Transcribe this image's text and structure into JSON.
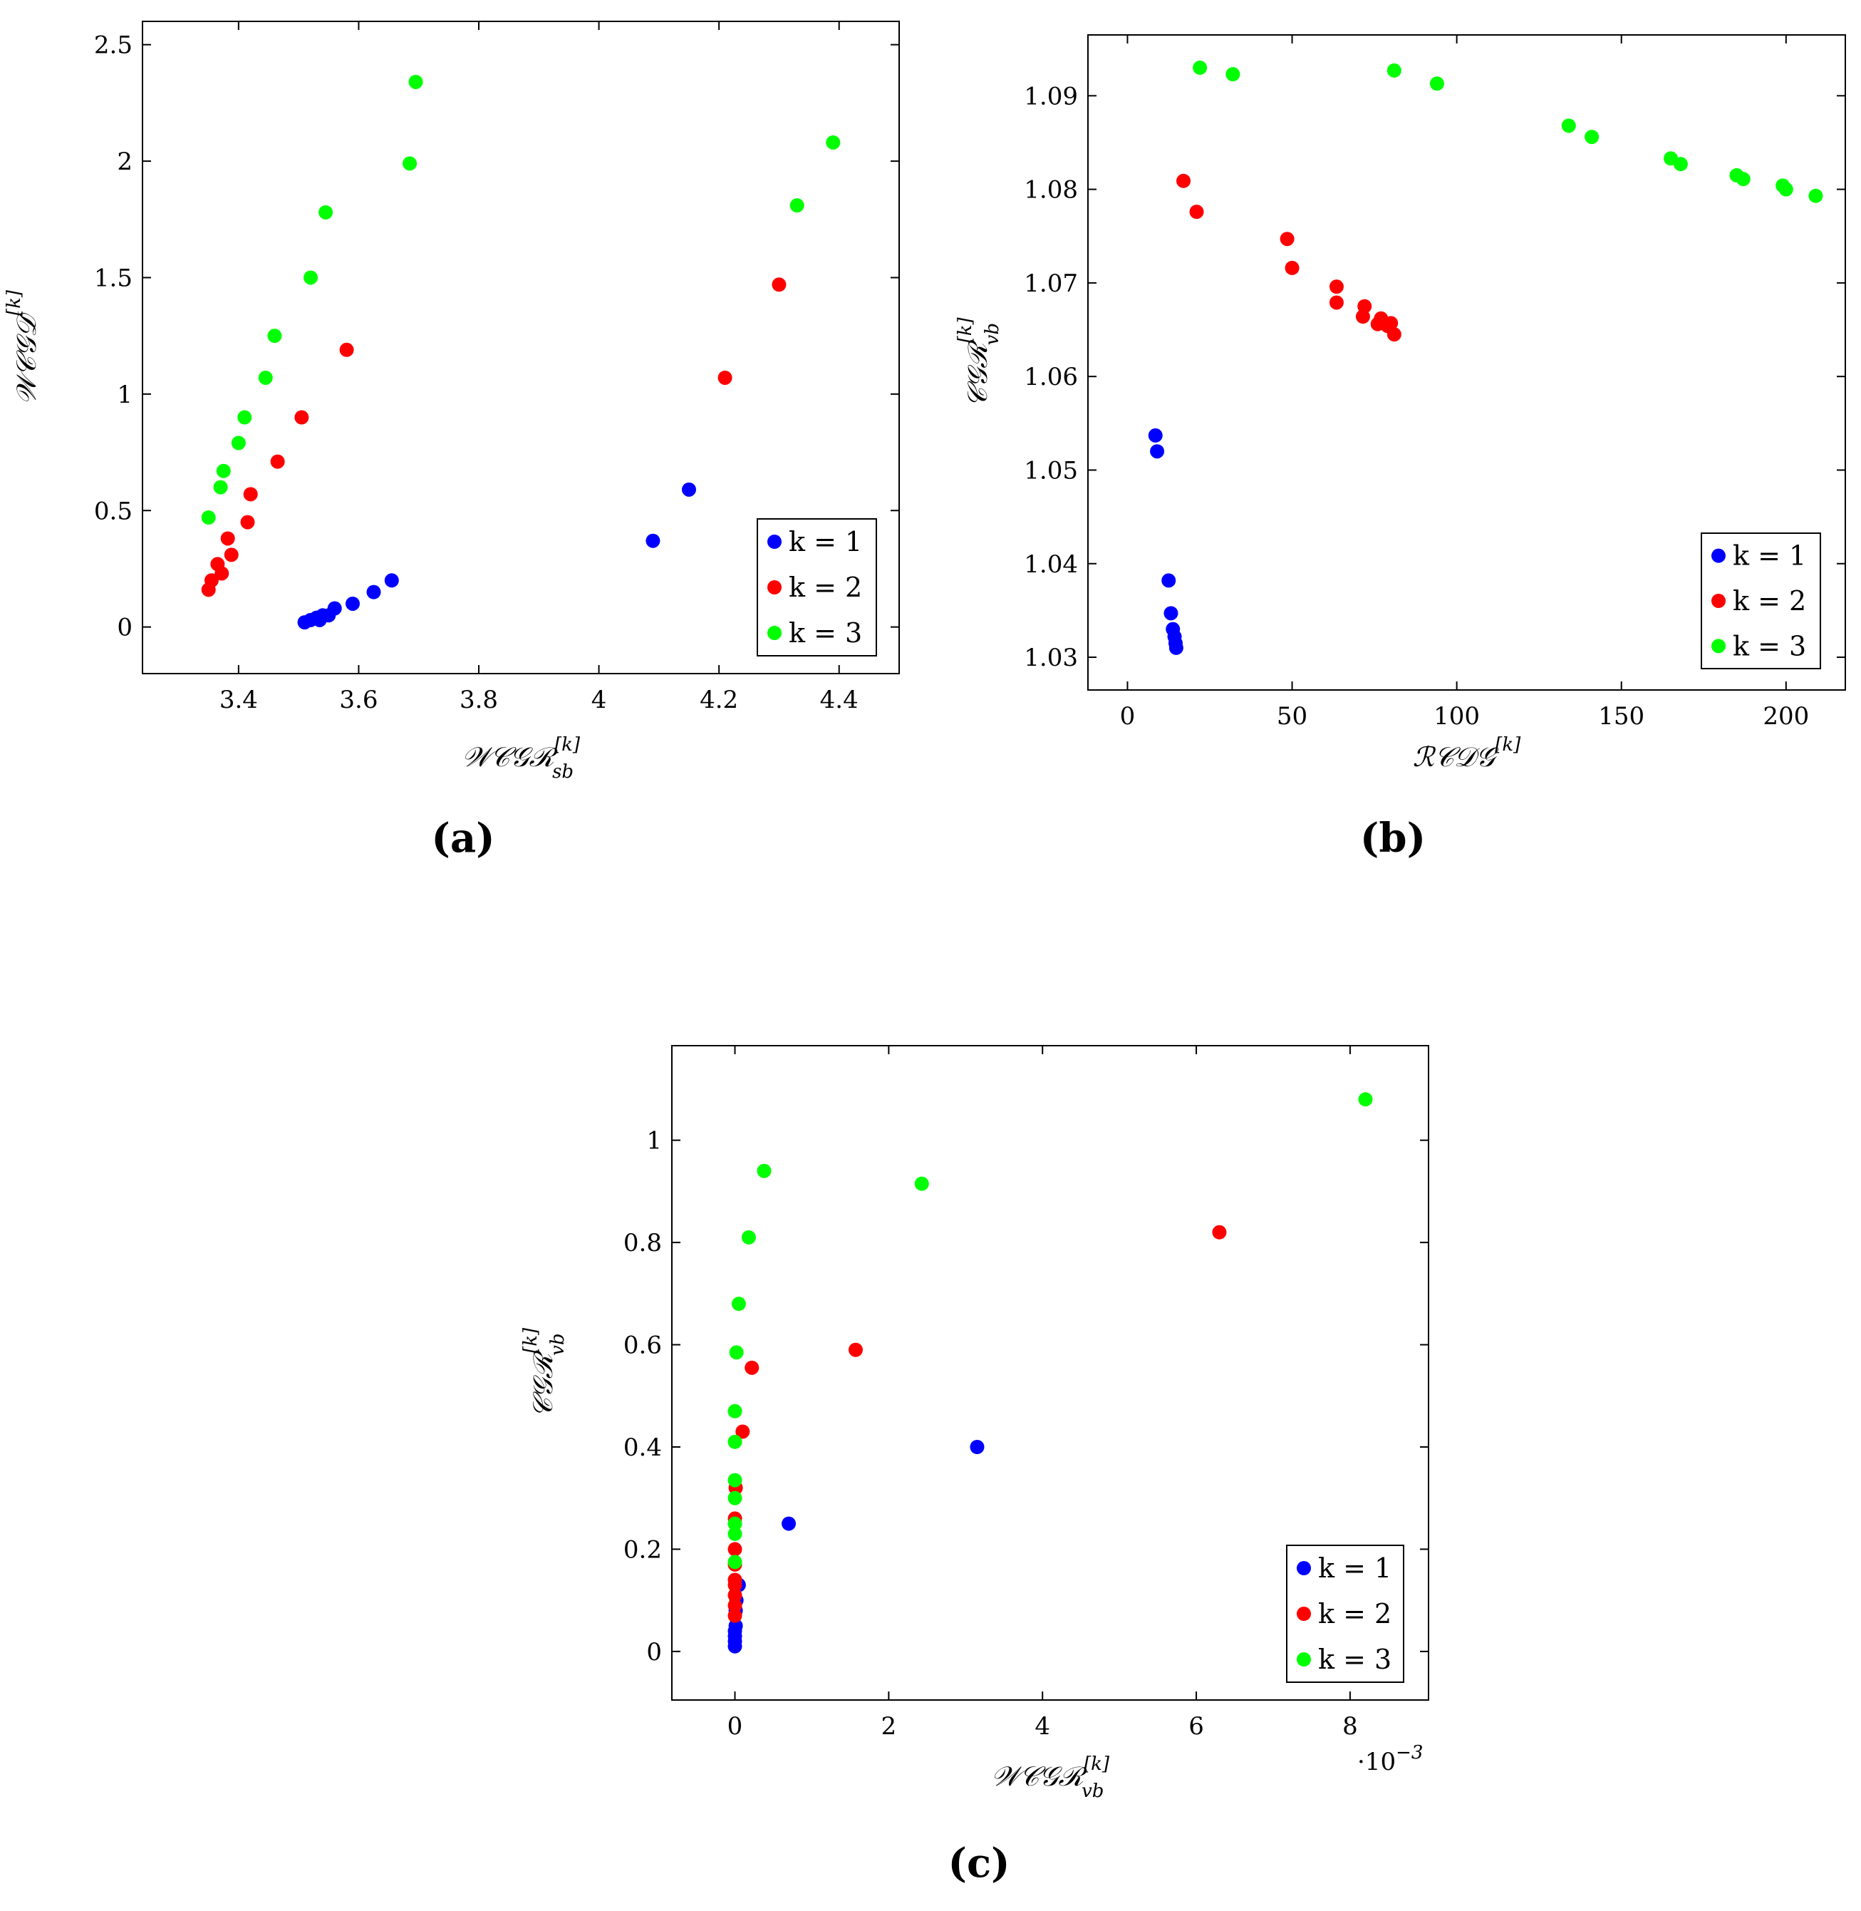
{
  "colors": {
    "k1": "#0000ff",
    "k2": "#ff0000",
    "k3": "#00ff00"
  },
  "legend": [
    {
      "key": "k1",
      "label": "k = 1"
    },
    {
      "key": "k2",
      "label": "k = 2"
    },
    {
      "key": "k3",
      "label": "k = 3"
    }
  ],
  "chart_data": [
    {
      "id": "a",
      "type": "scatter",
      "caption": "(a)",
      "xlabel": {
        "main": "𝒲𝒞𝒢ℛ",
        "sub": "sb",
        "sup": "[k]"
      },
      "ylabel": {
        "main": "𝒲𝒞𝒢𝒟",
        "sup": "[k]"
      },
      "xlim": [
        3.24,
        4.5
      ],
      "ylim": [
        -0.2,
        2.6
      ],
      "xticks": [
        3.4,
        3.6,
        3.8,
        4.0,
        4.2,
        4.4
      ],
      "xticklabels": [
        "3.4",
        "3.6",
        "3.8",
        "4",
        "4.2",
        "4.4"
      ],
      "yticks": [
        0,
        0.5,
        1,
        1.5,
        2,
        2.5
      ],
      "yticklabels": [
        "0",
        "0.5",
        "1",
        "1.5",
        "2",
        "2.5"
      ],
      "series": [
        {
          "name": "k = 1",
          "color_key": "k1",
          "points": [
            [
              3.51,
              0.02
            ],
            [
              3.52,
              0.03
            ],
            [
              3.53,
              0.04
            ],
            [
              3.535,
              0.03
            ],
            [
              3.54,
              0.05
            ],
            [
              3.55,
              0.05
            ],
            [
              3.56,
              0.08
            ],
            [
              3.59,
              0.1
            ],
            [
              3.625,
              0.15
            ],
            [
              3.655,
              0.2
            ],
            [
              4.09,
              0.37
            ],
            [
              4.15,
              0.59
            ]
          ]
        },
        {
          "name": "k = 2",
          "color_key": "k2",
          "points": [
            [
              3.35,
              0.16
            ],
            [
              3.355,
              0.2
            ],
            [
              3.365,
              0.27
            ],
            [
              3.372,
              0.23
            ],
            [
              3.382,
              0.38
            ],
            [
              3.388,
              0.31
            ],
            [
              3.415,
              0.45
            ],
            [
              3.42,
              0.57
            ],
            [
              3.465,
              0.71
            ],
            [
              3.505,
              0.9
            ],
            [
              3.58,
              1.19
            ],
            [
              4.21,
              1.07
            ],
            [
              4.3,
              1.47
            ]
          ]
        },
        {
          "name": "k = 3",
          "color_key": "k3",
          "points": [
            [
              3.35,
              0.47
            ],
            [
              3.37,
              0.6
            ],
            [
              3.375,
              0.67
            ],
            [
              3.4,
              0.79
            ],
            [
              3.41,
              0.9
            ],
            [
              3.445,
              1.07
            ],
            [
              3.46,
              1.25
            ],
            [
              3.52,
              1.5
            ],
            [
              3.545,
              1.78
            ],
            [
              3.685,
              1.99
            ],
            [
              3.695,
              2.34
            ],
            [
              4.33,
              1.81
            ],
            [
              4.39,
              2.08
            ]
          ]
        }
      ]
    },
    {
      "id": "b",
      "type": "scatter",
      "caption": "(b)",
      "xlabel": {
        "main": "ℛ𝒞𝒟𝒢",
        "sup": "[k]"
      },
      "ylabel": {
        "main": "𝒞𝒢ℛ",
        "sub": "vb",
        "sup": "[k]"
      },
      "xlim": [
        -12,
        218
      ],
      "ylim": [
        1.0265,
        1.0965
      ],
      "xticks": [
        0,
        50,
        100,
        150,
        200
      ],
      "xticklabels": [
        "0",
        "50",
        "100",
        "150",
        "200"
      ],
      "yticks": [
        1.03,
        1.04,
        1.05,
        1.06,
        1.07,
        1.08,
        1.09
      ],
      "yticklabels": [
        "1.03",
        "1.04",
        "1.05",
        "1.06",
        "1.07",
        "1.08",
        "1.09"
      ],
      "series": [
        {
          "name": "k = 1",
          "color_key": "k1",
          "points": [
            [
              8.5,
              1.0537
            ],
            [
              9.0,
              1.052
            ],
            [
              12.5,
              1.0382
            ],
            [
              13.2,
              1.0347
            ],
            [
              13.8,
              1.033
            ],
            [
              14.3,
              1.0322
            ],
            [
              14.6,
              1.0315
            ],
            [
              14.8,
              1.031
            ]
          ]
        },
        {
          "name": "k = 2",
          "color_key": "k2",
          "points": [
            [
              17,
              1.0809
            ],
            [
              21,
              1.0776
            ],
            [
              48.5,
              1.0747
            ],
            [
              50,
              1.0716
            ],
            [
              63.5,
              1.0696
            ],
            [
              63.5,
              1.0679
            ],
            [
              71.5,
              1.0664
            ],
            [
              72,
              1.0675
            ],
            [
              76,
              1.0656
            ],
            [
              77,
              1.0662
            ],
            [
              79,
              1.0654
            ],
            [
              80,
              1.0657
            ],
            [
              81,
              1.0645
            ]
          ]
        },
        {
          "name": "k = 3",
          "color_key": "k3",
          "points": [
            [
              22,
              1.093
            ],
            [
              32,
              1.0923
            ],
            [
              81,
              1.0927
            ],
            [
              94,
              1.0913
            ],
            [
              134,
              1.0868
            ],
            [
              141,
              1.0856
            ],
            [
              165,
              1.0833
            ],
            [
              168,
              1.0827
            ],
            [
              185,
              1.0815
            ],
            [
              187,
              1.0811
            ],
            [
              199,
              1.0804
            ],
            [
              200,
              1.08
            ],
            [
              209,
              1.0793
            ]
          ]
        }
      ]
    },
    {
      "id": "c",
      "type": "scatter",
      "caption": "(c)",
      "xlabel": {
        "main": "𝒲𝒞𝒢ℛ",
        "sub": "vb",
        "sup": "[k]"
      },
      "ylabel": {
        "main": "𝒞𝒢ℛ",
        "sub": "vb",
        "sup": "[k]"
      },
      "xscale_label": "·10",
      "xscale_exp": "−3",
      "xlim": [
        -0.00082,
        0.00902
      ],
      "ylim": [
        -0.095,
        1.185
      ],
      "xticks": [
        0,
        0.002,
        0.004,
        0.006,
        0.008
      ],
      "xticklabels": [
        "0",
        "2",
        "4",
        "6",
        "8"
      ],
      "yticks": [
        0,
        0.2,
        0.4,
        0.6,
        0.8,
        1
      ],
      "yticklabels": [
        "0",
        "0.2",
        "0.4",
        "0.6",
        "0.8",
        "1"
      ],
      "series": [
        {
          "name": "k = 1",
          "color_key": "k1",
          "points": [
            [
              0,
              0.01
            ],
            [
              0,
              0.02
            ],
            [
              0,
              0.03
            ],
            [
              0,
              0.04
            ],
            [
              1e-05,
              0.05
            ],
            [
              1e-05,
              0.08
            ],
            [
              2e-05,
              0.1
            ],
            [
              5e-05,
              0.13
            ],
            [
              0.0007,
              0.25
            ],
            [
              0.00315,
              0.4
            ]
          ]
        },
        {
          "name": "k = 2",
          "color_key": "k2",
          "points": [
            [
              0,
              0.07
            ],
            [
              0,
              0.09
            ],
            [
              0,
              0.11
            ],
            [
              0,
              0.13
            ],
            [
              0,
              0.14
            ],
            [
              0,
              0.17
            ],
            [
              0,
              0.2
            ],
            [
              0,
              0.26
            ],
            [
              1e-05,
              0.32
            ],
            [
              0.0001,
              0.43
            ],
            [
              0.00022,
              0.555
            ],
            [
              0.00157,
              0.59
            ],
            [
              0.0063,
              0.82
            ]
          ]
        },
        {
          "name": "k = 3",
          "color_key": "k3",
          "points": [
            [
              0,
              0.175
            ],
            [
              0,
              0.23
            ],
            [
              0,
              0.25
            ],
            [
              0,
              0.3
            ],
            [
              0,
              0.335
            ],
            [
              0,
              0.41
            ],
            [
              0,
              0.47
            ],
            [
              2e-05,
              0.585
            ],
            [
              5e-05,
              0.68
            ],
            [
              0.00018,
              0.81
            ],
            [
              0.00038,
              0.94
            ],
            [
              0.00243,
              0.915
            ],
            [
              0.0082,
              1.08
            ]
          ]
        }
      ]
    }
  ]
}
